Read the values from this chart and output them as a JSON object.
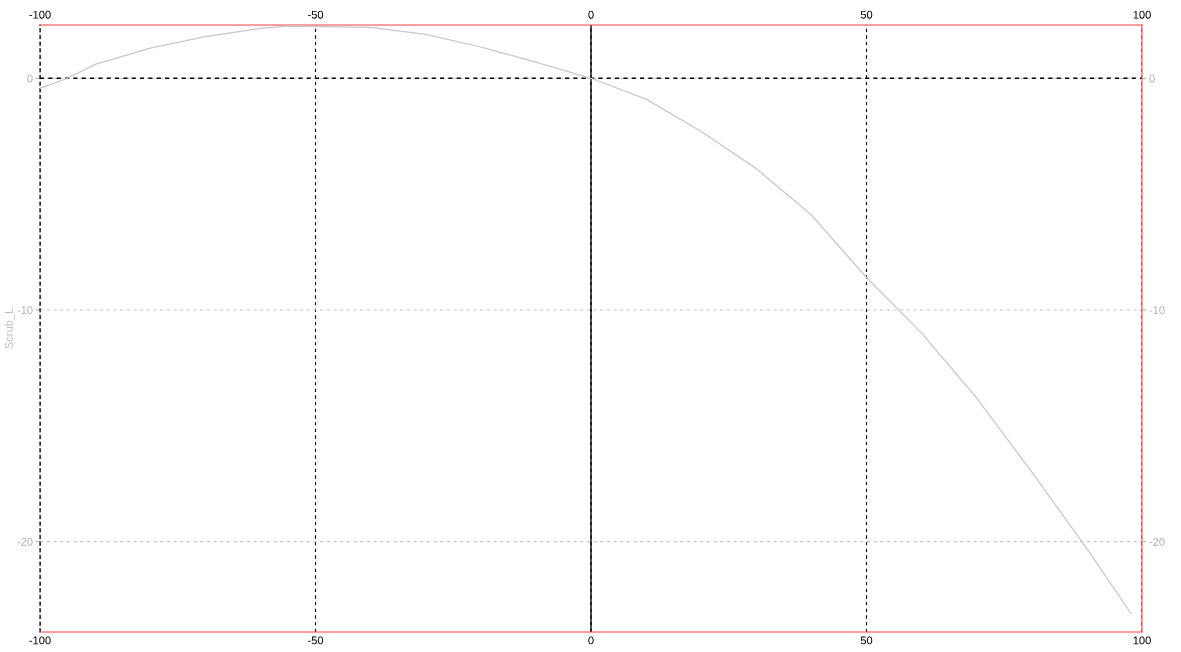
{
  "chart_data": {
    "type": "line",
    "ylabel": "Scrub_L",
    "x": [
      -100,
      -95,
      -90,
      -80,
      -70,
      -60,
      -55,
      -40,
      -30,
      -20,
      -10,
      0,
      10,
      20,
      30,
      40,
      50,
      60,
      70,
      80,
      90,
      98
    ],
    "series": [
      {
        "color": "#c8c8c8",
        "values": [
          -0.43,
          0,
          0.6,
          1.3,
          1.8,
          2.15,
          2.25,
          2.2,
          1.9,
          1.35,
          0.7,
          0,
          -0.9,
          -2.3,
          -3.9,
          -5.9,
          -8.6,
          -11.0,
          -13.8,
          -17.0,
          -20.3,
          -23.1
        ]
      }
    ],
    "xlim": [
      -100,
      100
    ],
    "xticks": [
      -100,
      -50,
      0,
      50,
      100
    ],
    "x2lim": [
      -100,
      100
    ],
    "x2ticks": [
      -100,
      -50,
      0,
      50,
      100
    ],
    "ylim": [
      -23.9,
      2.3
    ],
    "yticks": [
      -20,
      -10,
      0
    ],
    "y2lim": [
      -23.9,
      2.3
    ],
    "y2ticks": [
      -20,
      -10,
      0
    ],
    "ref_lines": [
      {
        "axis": "x",
        "value": 0,
        "color": "#000000",
        "line_style": "solid"
      },
      {
        "axis": "y",
        "value": 0,
        "color": "#000000",
        "line_style": "dashed"
      }
    ],
    "grid": true,
    "marker": "none",
    "line_style": "solid",
    "legend": false
  }
}
